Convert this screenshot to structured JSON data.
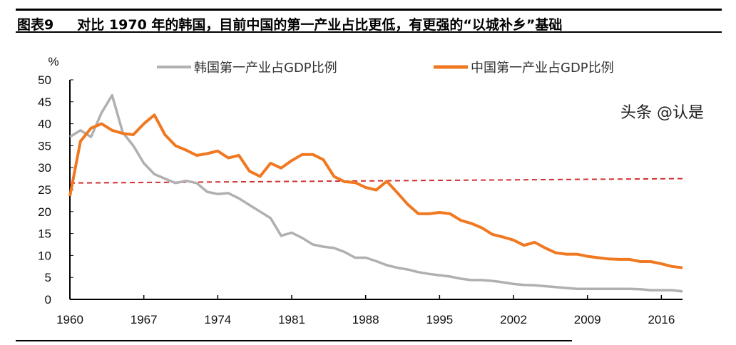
{
  "title": "图表9     对比 1970 年的韩国，目前中国的第一产业占比更低，有更强的“以城补乡”基础",
  "watermark": "头条 @认是",
  "chart_data": {
    "type": "line",
    "title": "图表9     对比 1970 年的韩国，目前中国的第一产业占比更低，有更强的“以城补乡”基础",
    "ylabel": "%",
    "xlabel": "",
    "xlim": [
      1960,
      2018
    ],
    "ylim": [
      0,
      50
    ],
    "xticks": [
      1960,
      1967,
      1974,
      1981,
      1988,
      1995,
      2002,
      2009,
      2016
    ],
    "yticks": [
      0,
      5,
      10,
      15,
      20,
      25,
      30,
      35,
      40,
      45,
      50
    ],
    "grid": false,
    "legend": "top",
    "x": [
      1960,
      1961,
      1962,
      1963,
      1964,
      1965,
      1966,
      1967,
      1968,
      1969,
      1970,
      1971,
      1972,
      1973,
      1974,
      1975,
      1976,
      1977,
      1978,
      1979,
      1980,
      1981,
      1982,
      1983,
      1984,
      1985,
      1986,
      1987,
      1988,
      1989,
      1990,
      1991,
      1992,
      1993,
      1994,
      1995,
      1996,
      1997,
      1998,
      1999,
      2000,
      2001,
      2002,
      2003,
      2004,
      2005,
      2006,
      2007,
      2008,
      2009,
      2010,
      2011,
      2012,
      2013,
      2014,
      2015,
      2016,
      2017,
      2018
    ],
    "series": [
      {
        "name": "韩国第一产业占GDP比例",
        "color": "#b0b0b0",
        "values": [
          37,
          38.5,
          37,
          42.5,
          46.5,
          38,
          35,
          31,
          28.5,
          27.5,
          26.5,
          27,
          26.5,
          24.5,
          24,
          24.2,
          23,
          21.5,
          20,
          18.5,
          14.5,
          15.2,
          14,
          12.5,
          12,
          11.7,
          10.8,
          9.5,
          9.5,
          8.7,
          7.8,
          7.2,
          6.8,
          6.2,
          5.8,
          5.5,
          5.2,
          4.7,
          4.4,
          4.4,
          4.2,
          3.9,
          3.5,
          3.3,
          3.2,
          3,
          2.8,
          2.6,
          2.4,
          2.4,
          2.4,
          2.4,
          2.4,
          2.4,
          2.3,
          2.1,
          2.1,
          2.1,
          1.8
        ]
      },
      {
        "name": "中国第一产业占GDP比例",
        "color": "#f07820",
        "values": [
          23.5,
          36,
          39,
          40,
          38.5,
          37.8,
          37.5,
          40,
          42,
          37.5,
          35,
          34,
          32.8,
          33.2,
          33.8,
          32.2,
          32.8,
          29.2,
          28,
          31,
          29.9,
          31.6,
          33,
          33,
          31.8,
          28,
          26.8,
          26.6,
          25.5,
          24.9,
          26.9,
          24.3,
          21.6,
          19.5,
          19.5,
          19.8,
          19.5,
          18,
          17.3,
          16.3,
          14.8,
          14.2,
          13.5,
          12.3,
          13,
          11.7,
          10.6,
          10.3,
          10.3,
          9.8,
          9.5,
          9.2,
          9.1,
          9.1,
          8.6,
          8.6,
          8.1,
          7.5,
          7.2
        ]
      }
    ],
    "reference_line": {
      "style": "dashed",
      "color": "#d03030",
      "x": [
        1960,
        2018
      ],
      "y": [
        26.5,
        27.5
      ]
    }
  }
}
